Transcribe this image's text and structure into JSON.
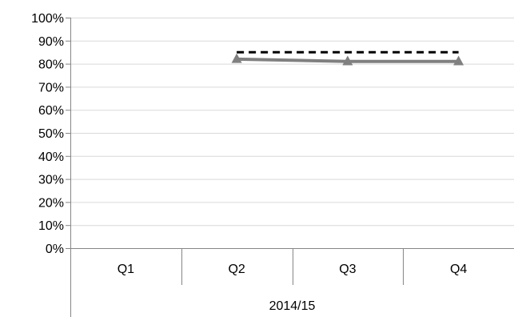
{
  "chart_data": {
    "type": "line",
    "title": "",
    "xlabel": "",
    "ylabel": "",
    "ylim": [
      0,
      100
    ],
    "y_ticks": [
      "0%",
      "10%",
      "20%",
      "30%",
      "40%",
      "50%",
      "60%",
      "70%",
      "80%",
      "90%",
      "100%"
    ],
    "categories": [
      "Q1",
      "Q2",
      "Q3",
      "Q4"
    ],
    "group_label": "2014/15",
    "grid": true,
    "legend": "none",
    "series": [
      {
        "values": [
          null,
          82,
          81,
          81
        ],
        "color": "#808080",
        "line_style": "solid",
        "marker": "triangle"
      },
      {
        "values": [
          null,
          85,
          85,
          85
        ],
        "color": "#000000",
        "line_style": "dashed",
        "marker": "none"
      }
    ]
  },
  "colors": {
    "gridline": "#d9d9d9",
    "axis": "#868686"
  }
}
